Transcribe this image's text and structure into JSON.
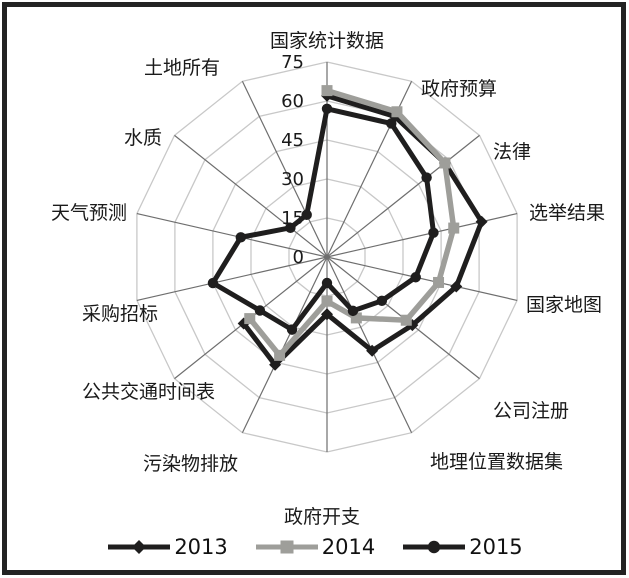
{
  "figure": {
    "background": "#ffffff",
    "border_color": "#232323"
  },
  "chart_data": {
    "type": "radar",
    "title": "",
    "categories": [
      "国家统计数据",
      "政府预算",
      "法律",
      "选举结果",
      "国家地图",
      "公司注册",
      "地理位置数据集",
      "政府开支",
      "污染物排放",
      "公共交通时间表",
      "采购招标",
      "天气预测",
      "水质",
      "土地所有"
    ],
    "radial_ticks": [
      0,
      15,
      30,
      45,
      60,
      75
    ],
    "rlim": [
      0,
      75
    ],
    "grid": true,
    "legend_position": "bottom",
    "series": [
      {
        "name": "2013",
        "color": "#1f1e1e",
        "marker": "diamond",
        "values": [
          62,
          60,
          58,
          61,
          51,
          42,
          40,
          22,
          46,
          41,
          null,
          null,
          null,
          null
        ]
      },
      {
        "name": "2014",
        "color": "#9e9e9a",
        "marker": "square",
        "values": [
          64,
          62,
          58,
          50,
          44,
          39,
          26,
          17,
          42,
          38,
          null,
          null,
          null,
          null
        ]
      },
      {
        "name": "2015",
        "color": "#1f1e1e",
        "marker": "circle",
        "values": [
          57,
          57,
          49,
          42,
          35,
          27,
          23,
          10,
          31,
          33,
          45,
          34,
          18,
          18
        ]
      }
    ],
    "grid_colors": {
      "ring": "#c8c8c8",
      "spoke": "#6e6e6e"
    },
    "tick_label_color": "#1a1a1a",
    "axis_label_color": "#1a1a1a"
  }
}
